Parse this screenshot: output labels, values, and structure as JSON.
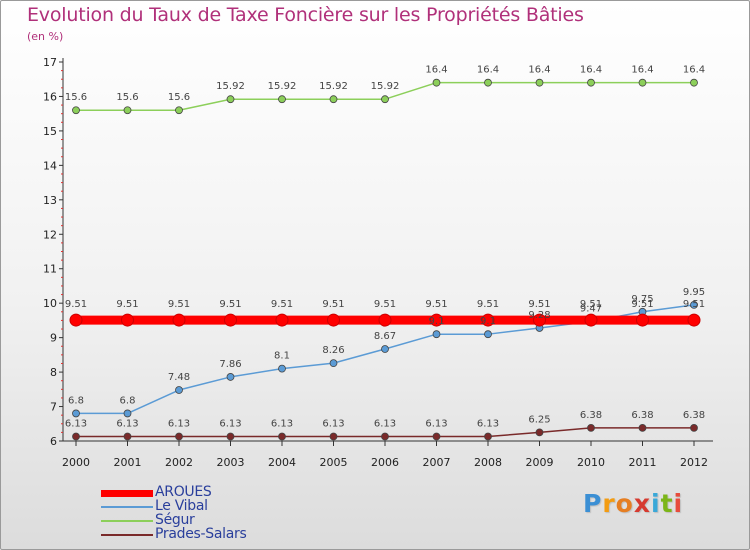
{
  "header": {
    "title": "Evolution du Taux de Taxe Foncière sur les Propriétés Bâties",
    "subtitle": "(en %)"
  },
  "brand": {
    "text": "Proxiti",
    "letters": [
      "P",
      "r",
      "o",
      "x",
      "i",
      "t",
      "i"
    ],
    "colors": [
      "#3b8fd4",
      "#f39c12",
      "#e67e22",
      "#d63a2f",
      "#3aa8d8",
      "#7cb518",
      "#e74c3c"
    ]
  },
  "chart_data": {
    "type": "line",
    "title": "Evolution du Taux de Taxe Foncière sur les Propriétés Bâties",
    "ylabel": "(en %)",
    "xlabel": "",
    "ylim": [
      6,
      17
    ],
    "yticks": [
      6,
      7,
      8,
      9,
      10,
      11,
      12,
      13,
      14,
      15,
      16,
      17
    ],
    "grid": false,
    "legend": "bottom-left",
    "x": [
      "2000",
      "2001",
      "2002",
      "2003",
      "2004",
      "2005",
      "2006",
      "2007",
      "2008",
      "2009",
      "2010",
      "2011",
      "2012"
    ],
    "series": [
      {
        "name": "AROUES",
        "color": "#ff0000",
        "values": [
          9.51,
          9.51,
          9.51,
          9.51,
          9.51,
          9.51,
          9.51,
          9.51,
          9.51,
          9.51,
          9.51,
          9.51,
          9.51
        ],
        "labels": [
          "9.51",
          "9.51",
          "9.51",
          "9.51",
          "9.51",
          "9.51",
          "9.51",
          "9.51",
          "9.51",
          "9.51",
          "9.51",
          "9.51",
          "9.51"
        ]
      },
      {
        "name": "Le Vibal",
        "color": "#5b9bd5",
        "values": [
          6.8,
          6.8,
          7.48,
          7.86,
          8.1,
          8.26,
          8.67,
          9.1,
          9.1,
          9.28,
          9.47,
          9.75,
          9.95
        ],
        "labels": [
          "6.8",
          "6.8",
          "7.48",
          "7.86",
          "8.1",
          "8.26",
          "8.67",
          "9.1",
          "9.1",
          "9.28",
          "9.47",
          "9.75",
          "9.95"
        ]
      },
      {
        "name": "Ségur",
        "color": "#8ccf5a",
        "values": [
          15.6,
          15.6,
          15.6,
          15.92,
          15.92,
          15.92,
          15.92,
          16.4,
          16.4,
          16.4,
          16.4,
          16.4,
          16.4
        ],
        "labels": [
          "15.6",
          "15.6",
          "15.6",
          "15.92",
          "15.92",
          "15.92",
          "15.92",
          "16.4",
          "16.4",
          "16.4",
          "16.4",
          "16.4",
          "16.4"
        ]
      },
      {
        "name": "Prades-Salars",
        "color": "#7a2a2a",
        "values": [
          6.13,
          6.13,
          6.13,
          6.13,
          6.13,
          6.13,
          6.13,
          6.13,
          6.13,
          6.25,
          6.38,
          6.38,
          6.38
        ],
        "labels": [
          "6.13",
          "6.13",
          "6.13",
          "6.13",
          "6.13",
          "6.13",
          "6.13",
          "6.13",
          "6.13",
          "6.25",
          "6.38",
          "6.38",
          "6.38"
        ]
      }
    ]
  }
}
